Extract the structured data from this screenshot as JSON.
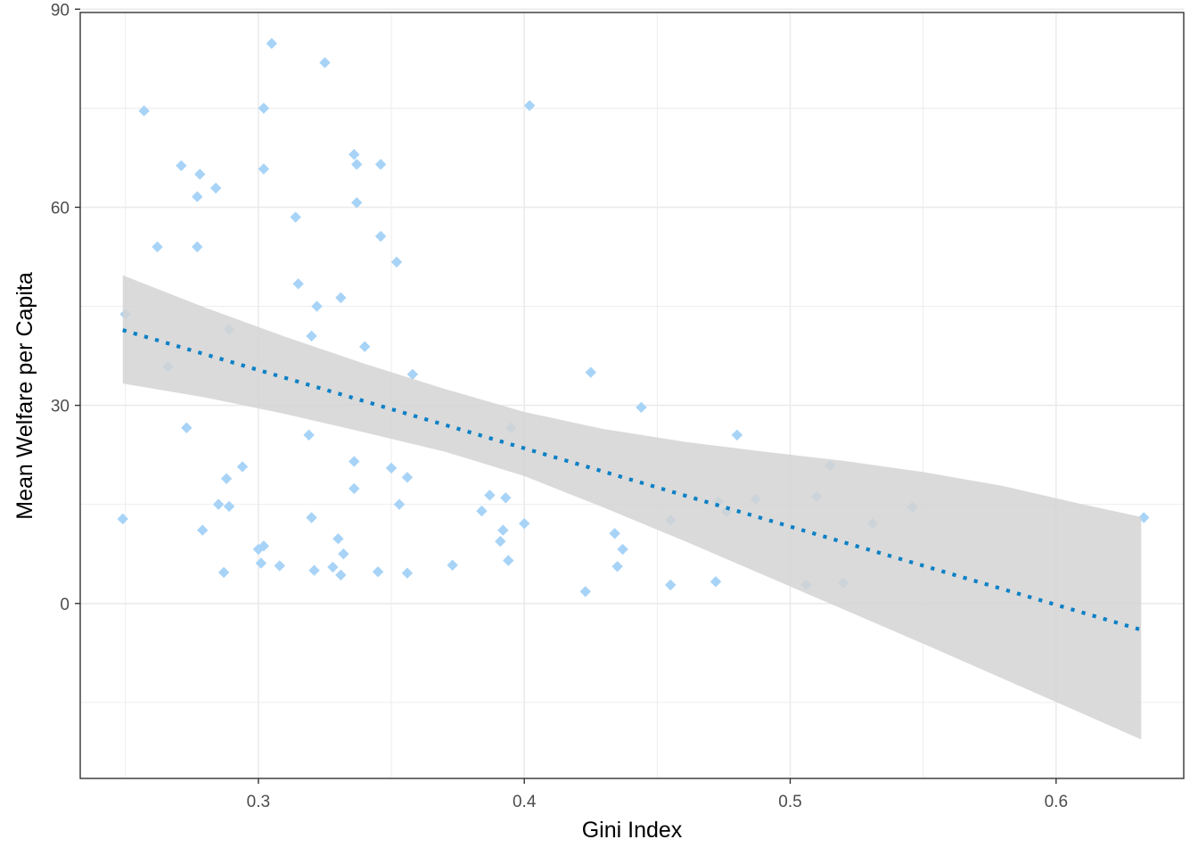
{
  "chart_data": {
    "type": "scatter",
    "xlabel": "Gini Index",
    "ylabel": "Mean Welfare per Capita",
    "xlim": [
      0.233,
      0.648
    ],
    "ylim": [
      -26.5,
      89.5
    ],
    "x_ticks": [
      0.3,
      0.4,
      0.5,
      0.6
    ],
    "x_tick_labels": [
      "0.3",
      "0.4",
      "0.5",
      "0.6"
    ],
    "y_ticks": [
      0,
      30,
      60,
      90
    ],
    "y_tick_labels": [
      "0",
      "30",
      "60",
      "90"
    ],
    "x_minor": [
      0.25,
      0.35,
      0.45,
      0.55
    ],
    "y_minor": [
      -15,
      15,
      45,
      75
    ],
    "grid": true,
    "colors": {
      "points": "#a7d3f7",
      "trend": "#0a80c6",
      "ribbon": "#d3d3d3",
      "grid": "#ebebeb",
      "panel_border": "#333333"
    },
    "points": [
      [
        0.25,
        43.8
      ],
      [
        0.249,
        12.8
      ],
      [
        0.257,
        74.6
      ],
      [
        0.262,
        54.0
      ],
      [
        0.266,
        35.9
      ],
      [
        0.271,
        66.3
      ],
      [
        0.273,
        26.6
      ],
      [
        0.277,
        61.6
      ],
      [
        0.277,
        54.0
      ],
      [
        0.278,
        65.0
      ],
      [
        0.279,
        11.1
      ],
      [
        0.284,
        62.9
      ],
      [
        0.285,
        15.0
      ],
      [
        0.287,
        4.7
      ],
      [
        0.288,
        18.9
      ],
      [
        0.289,
        41.5
      ],
      [
        0.289,
        14.7
      ],
      [
        0.294,
        20.7
      ],
      [
        0.3,
        8.2
      ],
      [
        0.301,
        6.1
      ],
      [
        0.302,
        8.7
      ],
      [
        0.302,
        65.8
      ],
      [
        0.302,
        75.0
      ],
      [
        0.305,
        84.8
      ],
      [
        0.308,
        5.7
      ],
      [
        0.314,
        58.5
      ],
      [
        0.315,
        48.4
      ],
      [
        0.319,
        25.5
      ],
      [
        0.32,
        40.5
      ],
      [
        0.32,
        13.0
      ],
      [
        0.321,
        5.0
      ],
      [
        0.322,
        45.0
      ],
      [
        0.325,
        81.9
      ],
      [
        0.328,
        5.5
      ],
      [
        0.33,
        9.8
      ],
      [
        0.331,
        46.3
      ],
      [
        0.331,
        4.3
      ],
      [
        0.332,
        7.5
      ],
      [
        0.336,
        68.0
      ],
      [
        0.336,
        21.5
      ],
      [
        0.336,
        17.4
      ],
      [
        0.337,
        66.5
      ],
      [
        0.337,
        60.7
      ],
      [
        0.34,
        38.9
      ],
      [
        0.345,
        4.8
      ],
      [
        0.346,
        66.5
      ],
      [
        0.346,
        55.6
      ],
      [
        0.35,
        20.5
      ],
      [
        0.352,
        51.7
      ],
      [
        0.353,
        15.0
      ],
      [
        0.356,
        19.1
      ],
      [
        0.356,
        4.6
      ],
      [
        0.358,
        34.7
      ],
      [
        0.373,
        5.8
      ],
      [
        0.384,
        14.0
      ],
      [
        0.387,
        16.4
      ],
      [
        0.391,
        9.4
      ],
      [
        0.392,
        11.1
      ],
      [
        0.393,
        16.0
      ],
      [
        0.394,
        6.5
      ],
      [
        0.395,
        26.6
      ],
      [
        0.4,
        12.1
      ],
      [
        0.402,
        75.4
      ],
      [
        0.423,
        1.8
      ],
      [
        0.425,
        35.0
      ],
      [
        0.434,
        10.6
      ],
      [
        0.435,
        5.6
      ],
      [
        0.437,
        8.2
      ],
      [
        0.444,
        29.7
      ],
      [
        0.455,
        12.6
      ],
      [
        0.455,
        2.8
      ],
      [
        0.472,
        3.3
      ],
      [
        0.473,
        15.4
      ],
      [
        0.476,
        13.9
      ],
      [
        0.48,
        25.5
      ],
      [
        0.487,
        15.8
      ],
      [
        0.506,
        2.8
      ],
      [
        0.51,
        16.2
      ],
      [
        0.515,
        20.9
      ],
      [
        0.52,
        3.1
      ],
      [
        0.531,
        12.1
      ],
      [
        0.546,
        14.6
      ],
      [
        0.633,
        13.0
      ]
    ],
    "trend": {
      "style": "dotted",
      "x_start": 0.249,
      "y_start": 41.4,
      "x_end": 0.632,
      "y_end": -4.0
    },
    "ribbon": {
      "x": [
        0.249,
        0.28,
        0.31,
        0.34,
        0.37,
        0.4,
        0.43,
        0.46,
        0.49,
        0.52,
        0.55,
        0.58,
        0.61,
        0.632
      ],
      "upper": [
        49.7,
        44.8,
        40.4,
        36.3,
        32.5,
        29.0,
        26.4,
        24.5,
        23.0,
        21.6,
        19.9,
        17.8,
        15.0,
        13.1
      ],
      "lower": [
        33.3,
        31.2,
        28.7,
        25.9,
        23.0,
        19.3,
        14.5,
        9.5,
        4.3,
        -0.9,
        -6.1,
        -11.4,
        -16.7,
        -20.6
      ]
    }
  }
}
